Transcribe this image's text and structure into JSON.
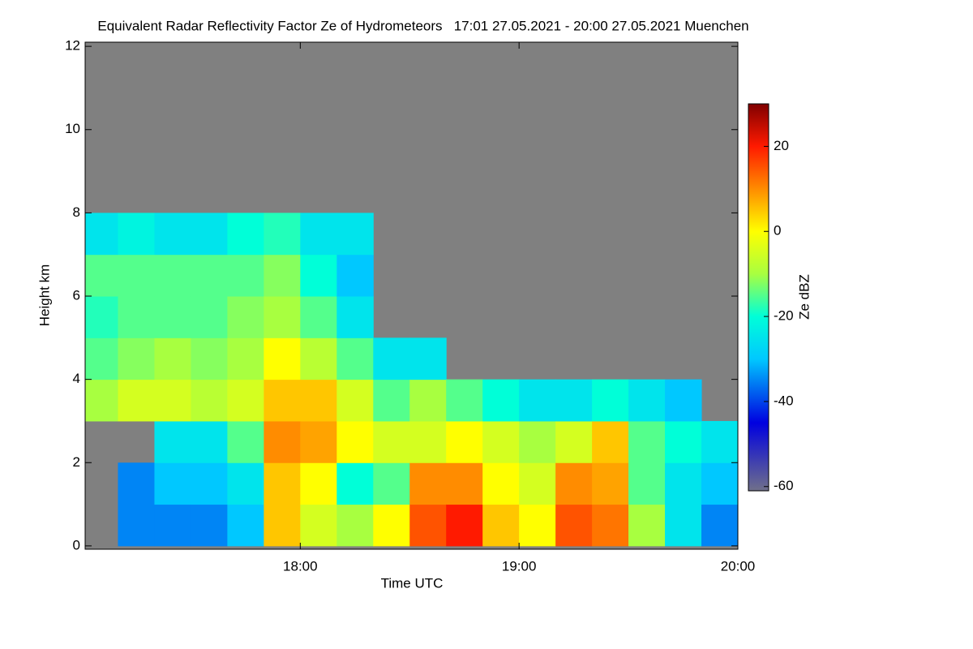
{
  "chart_data": {
    "type": "heatmap",
    "title": "Equivalent Radar Reflectivity Factor Ze of Hydrometeors   17:01 27.05.2021 - 20:00 27.05.2021 Muenchen",
    "xlabel": "Time UTC",
    "ylabel": "Height km",
    "colorbar_label": "Ze dBZ",
    "xlim": [
      1021,
      1200
    ],
    "xticks": [
      {
        "value": 1080,
        "label": "18:00"
      },
      {
        "value": 1140,
        "label": "19:00"
      },
      {
        "value": 1200,
        "label": "20:00"
      }
    ],
    "ylim": [
      -0.08,
      12.1
    ],
    "yticks": [
      0,
      2,
      4,
      6,
      8,
      10,
      12
    ],
    "zlim": [
      -61,
      30
    ],
    "zticks": [
      20,
      0,
      -20,
      -40,
      -60
    ],
    "background": "#808080",
    "colormap": [
      [
        -61,
        "#70708a"
      ],
      [
        -45,
        "#0000e0"
      ],
      [
        -30,
        "#00c8ff"
      ],
      [
        -20,
        "#00ffd8"
      ],
      [
        -10,
        "#a8ff40"
      ],
      [
        0,
        "#ffff00"
      ],
      [
        10,
        "#ff8c00"
      ],
      [
        20,
        "#ff1a00"
      ],
      [
        30,
        "#800000"
      ]
    ],
    "x_bins": [
      1020,
      1030,
      1040,
      1050,
      1060,
      1070,
      1080,
      1090,
      1100,
      1110,
      1120,
      1130,
      1140,
      1150,
      1160,
      1170,
      1180,
      1190,
      1200
    ],
    "y_bins": [
      0,
      1,
      2,
      3,
      4,
      5,
      6,
      7,
      8
    ],
    "z": [
      [
        null,
        null,
        null,
        -10,
        -15,
        -18,
        -15,
        -25
      ],
      [
        -35,
        -35,
        null,
        -5,
        -12,
        -15,
        -15,
        -22
      ],
      [
        -35,
        -30,
        -25,
        -5,
        -10,
        -15,
        -15,
        -25
      ],
      [
        -35,
        -30,
        -25,
        -8,
        -12,
        -15,
        -15,
        -25
      ],
      [
        -30,
        -25,
        -15,
        -5,
        -10,
        -12,
        -15,
        -20
      ],
      [
        5,
        5,
        10,
        5,
        0,
        -10,
        -12,
        -18
      ],
      [
        -5,
        0,
        8,
        5,
        -8,
        -15,
        -20,
        -25
      ],
      [
        -10,
        -20,
        0,
        -5,
        -15,
        -25,
        -30,
        -25
      ],
      [
        0,
        -15,
        -5,
        -15,
        -25,
        null,
        null,
        null
      ],
      [
        15,
        10,
        -5,
        -10,
        -25,
        null,
        null,
        null
      ],
      [
        20,
        10,
        0,
        -15,
        null,
        null,
        null,
        null
      ],
      [
        5,
        0,
        -5,
        -20,
        null,
        null,
        null,
        null
      ],
      [
        0,
        -5,
        -10,
        -25,
        null,
        null,
        null,
        null
      ],
      [
        15,
        10,
        -5,
        -25,
        null,
        null,
        null,
        null
      ],
      [
        12,
        8,
        5,
        -20,
        null,
        null,
        null,
        null
      ],
      [
        -10,
        -15,
        -15,
        -25,
        null,
        null,
        null,
        null
      ],
      [
        -25,
        -25,
        -20,
        -30,
        null,
        null,
        null,
        null
      ],
      [
        -35,
        -30,
        -25,
        null,
        null,
        null,
        null,
        null
      ]
    ]
  }
}
